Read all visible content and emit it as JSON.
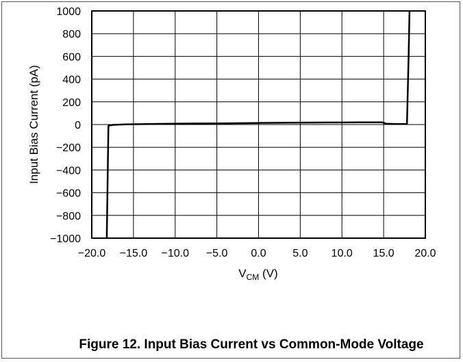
{
  "caption": "Figure 12. Input Bias Current vs Common-Mode Voltage",
  "chart_data": {
    "type": "line",
    "ylabel": "Input Bias Current (pA)",
    "xlabel_main": "V",
    "xlabel_sub": "CM",
    "xlabel_unit": " (V)",
    "xlim": [
      -20,
      20
    ],
    "ylim": [
      -1000,
      1000
    ],
    "grid": true,
    "x_ticks": [
      -20,
      -15,
      -10,
      -5,
      0,
      5,
      10,
      15,
      20
    ],
    "x_tick_labels": [
      "−20.0",
      "−15.0",
      "−10.0",
      "−5.0",
      "0.0",
      "5.0",
      "10.0",
      "15.0",
      "20.0"
    ],
    "y_ticks": [
      1000,
      800,
      600,
      400,
      200,
      0,
      -200,
      -400,
      -600,
      -800,
      -1000
    ],
    "y_tick_labels": [
      "1000",
      "800",
      "600",
      "400",
      "200",
      "0",
      "−200",
      "−400",
      "−600",
      "−800",
      "−1000"
    ],
    "series": [
      {
        "color": "#000000",
        "x": [
          -18.2,
          -18.1,
          -18.0,
          -17.5,
          -16,
          -12,
          -8,
          -4,
          0,
          4,
          8,
          12,
          14.8,
          15.3,
          16.5,
          17.8,
          18.0,
          18.1
        ],
        "y": [
          -1000,
          -500,
          -10,
          -3,
          2,
          6,
          9,
          11,
          14,
          16,
          18,
          19,
          20,
          8,
          5,
          5,
          600,
          1000
        ]
      }
    ]
  }
}
